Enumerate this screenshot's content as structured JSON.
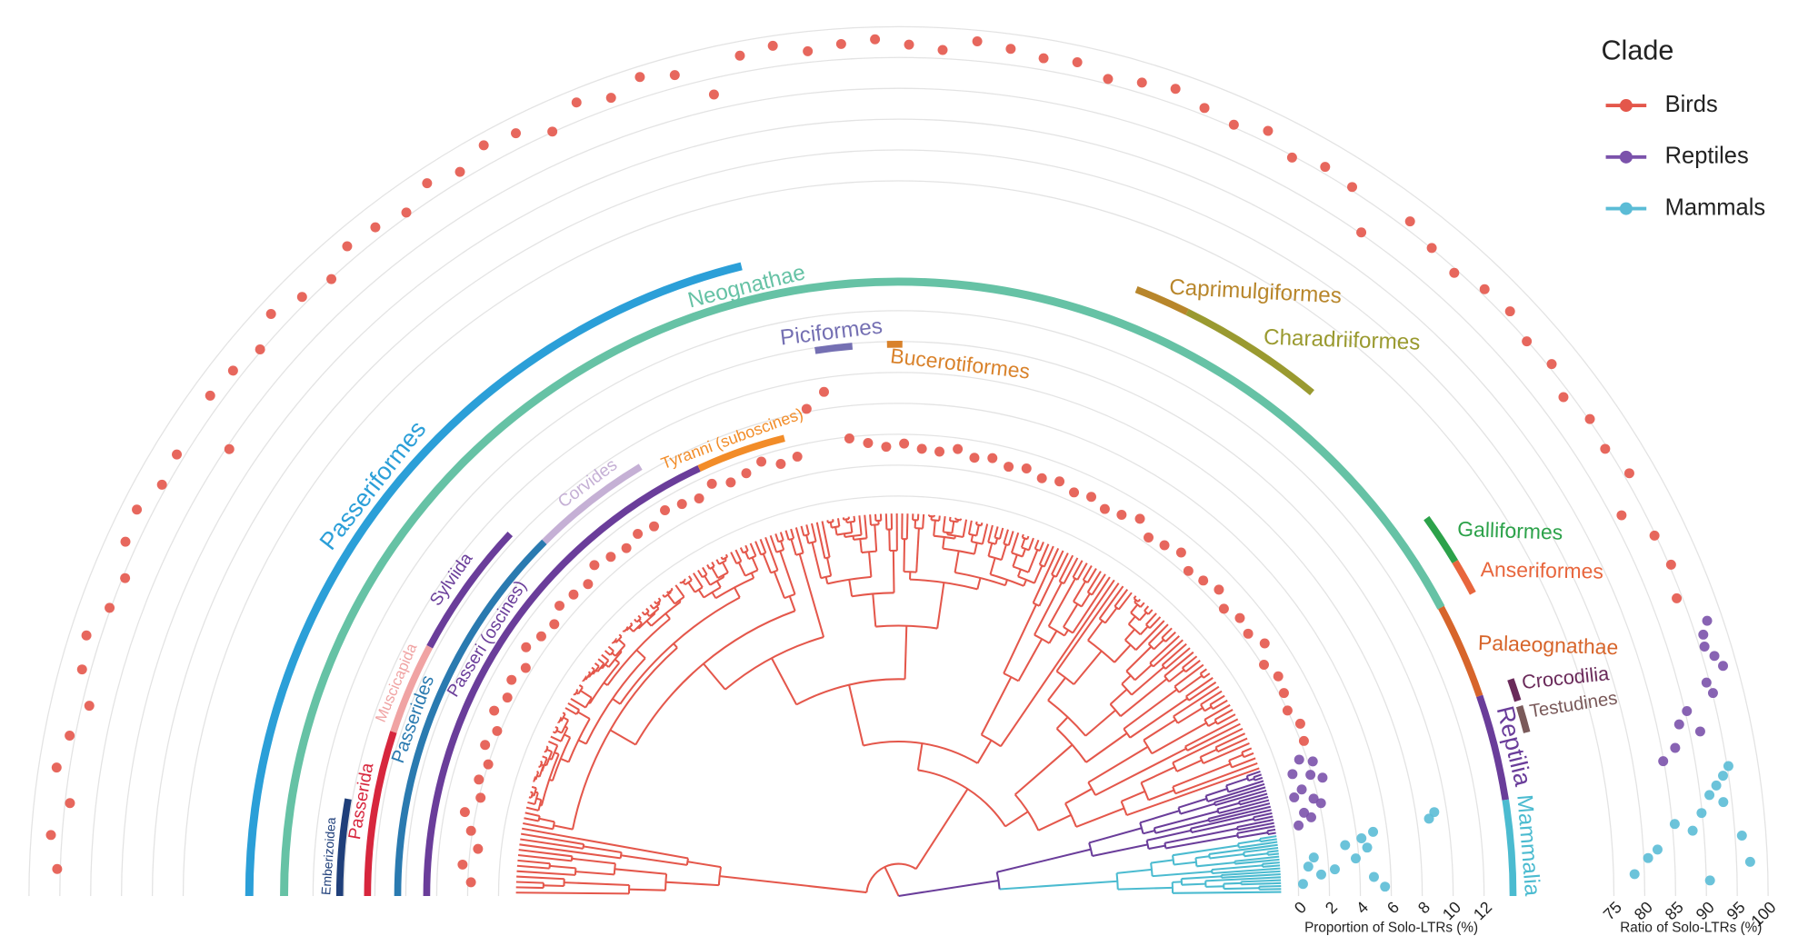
{
  "chart_data": {
    "type": "radial_scatter",
    "legend_title": "Clade",
    "series": [
      {
        "name": "Birds",
        "color": "#e4574b",
        "proportion": [
          1.8,
          2.4,
          1.5,
          2.1,
          2.7,
          1.9,
          2.3,
          2.0,
          2.6,
          2.2,
          2.9,
          2.5,
          2.8,
          2.4,
          3.1,
          2.7,
          2.5,
          3.0,
          2.8,
          2.6,
          3.2,
          2.9,
          2.7,
          3.0,
          2.8,
          3.3,
          3.1,
          2.9,
          3.4,
          3.0,
          3.2,
          3.6,
          3.1,
          3.3,
          6.2,
          7.1,
          3.9,
          3.5,
          3.2,
          3.4,
          3.1,
          3.0,
          3.3,
          2.9,
          3.1,
          2.8,
          3.0,
          2.7,
          2.9,
          2.6,
          2.8,
          2.5,
          2.7,
          3.1,
          2.4,
          2.6,
          2.9,
          2.3,
          2.5,
          2.8,
          2.2,
          2.6,
          2.4,
          2.9,
          2.1,
          2.5,
          2.3,
          2.0,
          2.4,
          2.2
        ],
        "ratio": [
          95.5,
          96.8,
          94.2,
          97.1,
          95.9,
          93.8,
          96.4,
          97.3,
          95.2,
          94.6,
          96.9,
          97.5,
          95.8,
          96.2,
          89.5,
          97.0,
          96.5,
          95.3,
          97.8,
          96.1,
          94.9,
          97.2,
          96.7,
          95.6,
          97.6,
          96.3,
          98.1,
          97.4,
          95.1,
          97.9,
          96.6,
          98.3,
          97.0,
          92.4,
          97.7,
          98.4,
          96.8,
          97.5,
          98.0,
          97.1,
          96.4,
          98.2,
          97.6,
          96.9,
          97.3,
          95.8,
          96.7,
          97.4,
          96.1,
          95.4,
          96.8,
          94.7,
          96.0,
          95.5,
          90.2,
          96.3,
          95.1,
          94.4,
          95.8,
          96.2,
          94.9,
          95.6,
          93.8,
          95.2,
          94.6,
          95.9,
          91.5,
          94.8,
          95.3,
          94.1
        ]
      },
      {
        "name": "Reptiles",
        "color": "#7b52ab",
        "proportion": [
          1.5,
          2.3,
          0.8,
          1.9,
          2.6,
          1.1,
          0.5,
          1.7,
          2.1,
          0.9,
          1.3,
          0.4
        ],
        "ratio": [
          97.5,
          96.2,
          95.8,
          96.9,
          97.8,
          94.5,
          95.1,
          90.3,
          88.6,
          91.7,
          87.2,
          84.9
        ]
      },
      {
        "name": "Mammals",
        "color": "#5bbcd6",
        "proportion": [
          9.2,
          8.8,
          5.1,
          4.3,
          3.2,
          4.6,
          1.1,
          3.8,
          0.7,
          2.4,
          1.5,
          4.9,
          0.3,
          5.6
        ],
        "ratio": [
          95.2,
          94.1,
          92.8,
          91.5,
          93.6,
          89.9,
          85.4,
          88.2,
          96.1,
          82.3,
          80.7,
          97.2,
          78.4,
          90.6
        ]
      }
    ],
    "proportion_axis": {
      "label": "Proportion of Solo-LTRs (%)",
      "lim": [
        0,
        12
      ],
      "ticks": [
        0,
        2,
        4,
        6,
        8,
        10,
        12
      ]
    },
    "ratio_axis": {
      "label": "Ratio of Solo-LTRs (%)",
      "lim": [
        75,
        100
      ],
      "ticks": [
        75,
        80,
        85,
        90,
        95,
        100
      ]
    },
    "clades": [
      {
        "name": "Passeriformes",
        "color": "#2b9fd8"
      },
      {
        "name": "Neognathae",
        "color": "#66c2a5"
      },
      {
        "name": "Emberizoidea",
        "color": "#1f3f7a"
      },
      {
        "name": "Passerida",
        "color": "#d7263d"
      },
      {
        "name": "Muscicapida",
        "color": "#f0a3a3"
      },
      {
        "name": "Sylviida",
        "color": "#6a3d9a"
      },
      {
        "name": "Passerides",
        "color": "#2a7ab0"
      },
      {
        "name": "Corvides",
        "color": "#c5b0d5"
      },
      {
        "name": "Passeri (oscines)",
        "color": "#6a3d9a"
      },
      {
        "name": "Tyranni (suboscines)",
        "color": "#f28c28"
      },
      {
        "name": "Piciformes",
        "color": "#7570b3"
      },
      {
        "name": "Bucerotiformes",
        "color": "#d9822b"
      },
      {
        "name": "Caprimulgiformes",
        "color": "#b8862b"
      },
      {
        "name": "Charadriiformes",
        "color": "#9a9a30"
      },
      {
        "name": "Galliformes",
        "color": "#2ca24a"
      },
      {
        "name": "Anseriformes",
        "color": "#e8663d"
      },
      {
        "name": "Palaeognathae",
        "color": "#d7652b"
      },
      {
        "name": "Reptilia",
        "color": "#6a3d9a"
      },
      {
        "name": "Mammalia",
        "color": "#4bbbd0"
      },
      {
        "name": "Crocodilia",
        "color": "#6a2a5a"
      },
      {
        "name": "Testudines",
        "color": "#7a5a5a"
      }
    ]
  }
}
